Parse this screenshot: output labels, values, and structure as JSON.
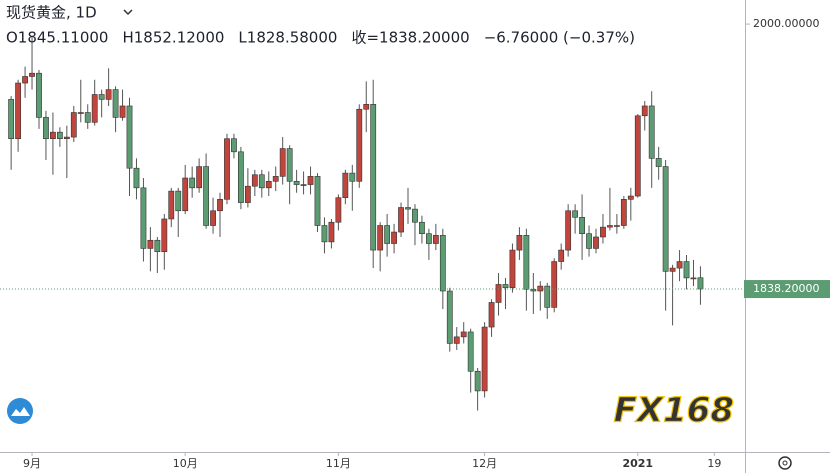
{
  "chart_data": {
    "type": "candlestick",
    "symbol": "现货黄金, 1D",
    "header": [
      "O1845.11000",
      "H1852.12000",
      "L1828.58000",
      "收=1838.20000",
      "−6.76000 (−0.37%)"
    ],
    "watermark": "FX168",
    "up_color": "#c0453c",
    "down_color": "#5b9c72",
    "xlim": [
      -1.6,
      105.4
    ],
    "xticks": [
      {
        "value": 3,
        "label": "9月"
      },
      {
        "value": 25,
        "label": "10月"
      },
      {
        "value": 47,
        "label": "11月"
      },
      {
        "value": 68,
        "label": "12月"
      },
      {
        "value": 90,
        "label": "2021"
      },
      {
        "value": 101,
        "label": "19"
      }
    ],
    "ylim": [
      1738.7,
      2014.7
    ],
    "yticks": [
      {
        "value": 2000,
        "label": "2000.00000"
      }
    ],
    "price_label": "1838.20000",
    "ohlc": [
      [
        1954,
        1956,
        1911,
        1930
      ],
      [
        1930,
        1966,
        1922,
        1964
      ],
      [
        1964,
        1974,
        1955,
        1968
      ],
      [
        1968,
        1992,
        1960,
        1970
      ],
      [
        1970,
        1972,
        1936,
        1943
      ],
      [
        1943,
        1947,
        1917,
        1930
      ],
      [
        1930,
        1946,
        1908,
        1934
      ],
      [
        1934,
        1937,
        1925,
        1930
      ],
      [
        1930,
        1938,
        1906,
        1931
      ],
      [
        1931,
        1950,
        1928,
        1946
      ],
      [
        1946,
        1966,
        1940,
        1946
      ],
      [
        1946,
        1951,
        1936,
        1940
      ],
      [
        1940,
        1966,
        1938,
        1957
      ],
      [
        1957,
        1960,
        1943,
        1954
      ],
      [
        1954,
        1973,
        1950,
        1960
      ],
      [
        1960,
        1962,
        1934,
        1943
      ],
      [
        1943,
        1960,
        1941,
        1950
      ],
      [
        1950,
        1955,
        1895,
        1912
      ],
      [
        1912,
        1918,
        1893,
        1900
      ],
      [
        1900,
        1906,
        1855,
        1863
      ],
      [
        1863,
        1876,
        1849,
        1868
      ],
      [
        1868,
        1870,
        1848,
        1861
      ],
      [
        1861,
        1884,
        1850,
        1881
      ],
      [
        1881,
        1900,
        1876,
        1898
      ],
      [
        1898,
        1900,
        1870,
        1886
      ],
      [
        1886,
        1914,
        1884,
        1906
      ],
      [
        1906,
        1913,
        1894,
        1900
      ],
      [
        1900,
        1918,
        1897,
        1913
      ],
      [
        1913,
        1921,
        1875,
        1877
      ],
      [
        1877,
        1894,
        1872,
        1886
      ],
      [
        1886,
        1897,
        1870,
        1893
      ],
      [
        1893,
        1933,
        1890,
        1930
      ],
      [
        1930,
        1933,
        1918,
        1922
      ],
      [
        1922,
        1925,
        1887,
        1891
      ],
      [
        1891,
        1912,
        1888,
        1901
      ],
      [
        1901,
        1911,
        1895,
        1908
      ],
      [
        1908,
        1911,
        1894,
        1900
      ],
      [
        1900,
        1910,
        1895,
        1904
      ],
      [
        1904,
        1913,
        1898,
        1907
      ],
      [
        1907,
        1931,
        1902,
        1924
      ],
      [
        1924,
        1926,
        1890,
        1904
      ],
      [
        1904,
        1911,
        1897,
        1902
      ],
      [
        1902,
        1910,
        1896,
        1902
      ],
      [
        1902,
        1913,
        1896,
        1907
      ],
      [
        1907,
        1909,
        1873,
        1877
      ],
      [
        1877,
        1882,
        1860,
        1867
      ],
      [
        1867,
        1881,
        1863,
        1879
      ],
      [
        1879,
        1896,
        1874,
        1894
      ],
      [
        1894,
        1911,
        1890,
        1909
      ],
      [
        1909,
        1914,
        1886,
        1904
      ],
      [
        1904,
        1951,
        1900,
        1948
      ],
      [
        1948,
        1965,
        1934,
        1951
      ],
      [
        1951,
        1966,
        1851,
        1862
      ],
      [
        1862,
        1879,
        1849,
        1877
      ],
      [
        1877,
        1884,
        1858,
        1866
      ],
      [
        1866,
        1878,
        1860,
        1873
      ],
      [
        1873,
        1891,
        1870,
        1888
      ],
      [
        1888,
        1900,
        1878,
        1887
      ],
      [
        1887,
        1890,
        1865,
        1879
      ],
      [
        1879,
        1883,
        1866,
        1872
      ],
      [
        1872,
        1875,
        1856,
        1866
      ],
      [
        1866,
        1878,
        1862,
        1871
      ],
      [
        1871,
        1875,
        1826,
        1837
      ],
      [
        1837,
        1839,
        1800,
        1805
      ],
      [
        1805,
        1815,
        1801,
        1809
      ],
      [
        1809,
        1818,
        1805,
        1812
      ],
      [
        1812,
        1814,
        1775,
        1788
      ],
      [
        1788,
        1790,
        1764,
        1776
      ],
      [
        1776,
        1818,
        1772,
        1815
      ],
      [
        1815,
        1832,
        1809,
        1830
      ],
      [
        1830,
        1848,
        1822,
        1841
      ],
      [
        1841,
        1845,
        1826,
        1839
      ],
      [
        1839,
        1866,
        1836,
        1862
      ],
      [
        1862,
        1876,
        1856,
        1871
      ],
      [
        1871,
        1875,
        1825,
        1838
      ],
      [
        1838,
        1848,
        1823,
        1837
      ],
      [
        1837,
        1843,
        1825,
        1840
      ],
      [
        1840,
        1842,
        1820,
        1827
      ],
      [
        1827,
        1857,
        1824,
        1855
      ],
      [
        1855,
        1866,
        1850,
        1862
      ],
      [
        1862,
        1890,
        1858,
        1886
      ],
      [
        1886,
        1890,
        1872,
        1882
      ],
      [
        1882,
        1896,
        1856,
        1872
      ],
      [
        1872,
        1877,
        1858,
        1863
      ],
      [
        1863,
        1875,
        1860,
        1870
      ],
      [
        1870,
        1884,
        1866,
        1876
      ],
      [
        1876,
        1900,
        1874,
        1877
      ],
      [
        1877,
        1884,
        1872,
        1877
      ],
      [
        1877,
        1895,
        1875,
        1893
      ],
      [
        1893,
        1900,
        1880,
        1895
      ],
      [
        1895,
        1945,
        1894,
        1944
      ],
      [
        1944,
        1953,
        1935,
        1950
      ],
      [
        1950,
        1959,
        1900,
        1918
      ],
      [
        1918,
        1925,
        1905,
        1913
      ],
      [
        1913,
        1917,
        1825,
        1849
      ],
      [
        1849,
        1853,
        1816,
        1851
      ],
      [
        1851,
        1862,
        1843,
        1855
      ],
      [
        1855,
        1859,
        1838,
        1845
      ],
      [
        1845,
        1856,
        1840,
        1845
      ],
      [
        1845.11,
        1852.12,
        1828.58,
        1838.2
      ]
    ]
  }
}
